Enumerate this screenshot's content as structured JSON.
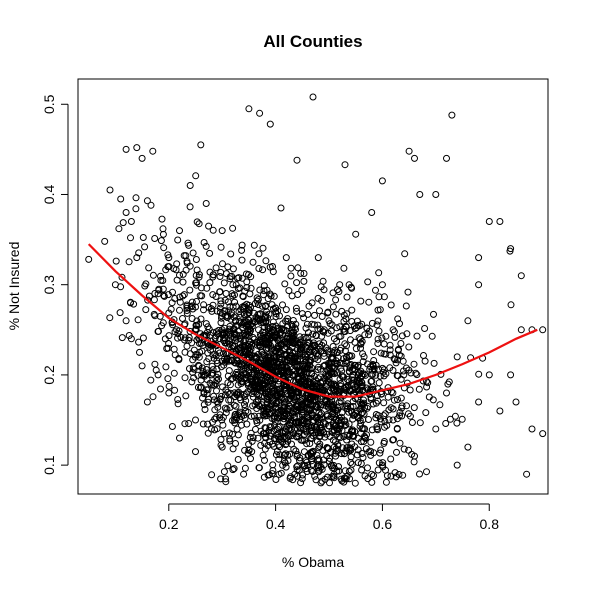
{
  "chart_data": {
    "type": "scatter",
    "title": "All Counties",
    "xlabel": "% Obama",
    "ylabel": "% Not Insured",
    "xlim": [
      0.03,
      0.91
    ],
    "ylim": [
      0.068,
      0.528
    ],
    "x_ticks": [
      0.2,
      0.4,
      0.6,
      0.8
    ],
    "x_tick_labels": [
      "0.2",
      "0.4",
      "0.6",
      "0.8"
    ],
    "y_ticks": [
      0.1,
      0.2,
      0.3,
      0.4,
      0.5
    ],
    "y_tick_labels": [
      "0.1",
      "0.2",
      "0.3",
      "0.4",
      "0.5"
    ],
    "grid": false,
    "point_marker": "open-circle",
    "point_color": "#000000",
    "point_count_shown": "approx. 3000 counties (dense cloud)",
    "points_sample": [
      [
        0.05,
        0.328
      ],
      [
        0.08,
        0.348
      ],
      [
        0.09,
        0.405
      ],
      [
        0.11,
        0.395
      ],
      [
        0.1,
        0.3
      ],
      [
        0.12,
        0.38
      ],
      [
        0.12,
        0.45
      ],
      [
        0.14,
        0.452
      ],
      [
        0.15,
        0.44
      ],
      [
        0.17,
        0.448
      ],
      [
        0.16,
        0.393
      ],
      [
        0.13,
        0.37
      ],
      [
        0.14,
        0.33
      ],
      [
        0.12,
        0.26
      ],
      [
        0.13,
        0.24
      ],
      [
        0.15,
        0.21
      ],
      [
        0.16,
        0.17
      ],
      [
        0.18,
        0.2
      ],
      [
        0.2,
        0.18
      ],
      [
        0.18,
        0.29
      ],
      [
        0.2,
        0.33
      ],
      [
        0.22,
        0.36
      ],
      [
        0.24,
        0.41
      ],
      [
        0.26,
        0.455
      ],
      [
        0.27,
        0.39
      ],
      [
        0.3,
        0.36
      ],
      [
        0.32,
        0.3
      ],
      [
        0.3,
        0.25
      ],
      [
        0.28,
        0.2
      ],
      [
        0.25,
        0.15
      ],
      [
        0.22,
        0.13
      ],
      [
        0.25,
        0.115
      ],
      [
        0.28,
        0.14
      ],
      [
        0.3,
        0.12
      ],
      [
        0.32,
        0.095
      ],
      [
        0.34,
        0.09
      ],
      [
        0.35,
        0.495
      ],
      [
        0.37,
        0.49
      ],
      [
        0.39,
        0.478
      ],
      [
        0.47,
        0.508
      ],
      [
        0.44,
        0.438
      ],
      [
        0.41,
        0.385
      ],
      [
        0.42,
        0.33
      ],
      [
        0.4,
        0.27
      ],
      [
        0.38,
        0.22
      ],
      [
        0.4,
        0.18
      ],
      [
        0.42,
        0.14
      ],
      [
        0.44,
        0.11
      ],
      [
        0.45,
        0.085
      ],
      [
        0.46,
        0.1
      ],
      [
        0.48,
        0.15
      ],
      [
        0.5,
        0.2
      ],
      [
        0.5,
        0.26
      ],
      [
        0.52,
        0.3
      ],
      [
        0.48,
        0.33
      ],
      [
        0.55,
        0.356
      ],
      [
        0.53,
        0.433
      ],
      [
        0.58,
        0.38
      ],
      [
        0.6,
        0.415
      ],
      [
        0.65,
        0.448
      ],
      [
        0.66,
        0.44
      ],
      [
        0.67,
        0.4
      ],
      [
        0.7,
        0.4
      ],
      [
        0.72,
        0.44
      ],
      [
        0.73,
        0.488
      ],
      [
        0.6,
        0.3
      ],
      [
        0.62,
        0.25
      ],
      [
        0.64,
        0.2
      ],
      [
        0.62,
        0.15
      ],
      [
        0.6,
        0.1
      ],
      [
        0.58,
        0.09
      ],
      [
        0.66,
        0.11
      ],
      [
        0.7,
        0.14
      ],
      [
        0.72,
        0.18
      ],
      [
        0.74,
        0.22
      ],
      [
        0.76,
        0.26
      ],
      [
        0.78,
        0.3
      ],
      [
        0.8,
        0.37
      ],
      [
        0.82,
        0.37
      ],
      [
        0.78,
        0.33
      ],
      [
        0.8,
        0.2
      ],
      [
        0.78,
        0.17
      ],
      [
        0.76,
        0.12
      ],
      [
        0.74,
        0.1
      ],
      [
        0.82,
        0.16
      ],
      [
        0.84,
        0.2
      ],
      [
        0.86,
        0.25
      ],
      [
        0.88,
        0.25
      ],
      [
        0.9,
        0.25
      ],
      [
        0.85,
        0.17
      ],
      [
        0.87,
        0.09
      ],
      [
        0.88,
        0.14
      ],
      [
        0.9,
        0.135
      ],
      [
        0.84,
        0.34
      ],
      [
        0.86,
        0.31
      ]
    ],
    "series": [
      {
        "type": "line",
        "color": "#ee1111",
        "x": [
          0.05,
          0.1,
          0.15,
          0.2,
          0.25,
          0.3,
          0.35,
          0.4,
          0.45,
          0.5,
          0.55,
          0.6,
          0.65,
          0.7,
          0.75,
          0.8,
          0.85,
          0.89
        ],
        "values": [
          0.345,
          0.315,
          0.288,
          0.263,
          0.245,
          0.23,
          0.215,
          0.198,
          0.184,
          0.176,
          0.176,
          0.183,
          0.19,
          0.2,
          0.212,
          0.225,
          0.24,
          0.25
        ]
      }
    ]
  }
}
